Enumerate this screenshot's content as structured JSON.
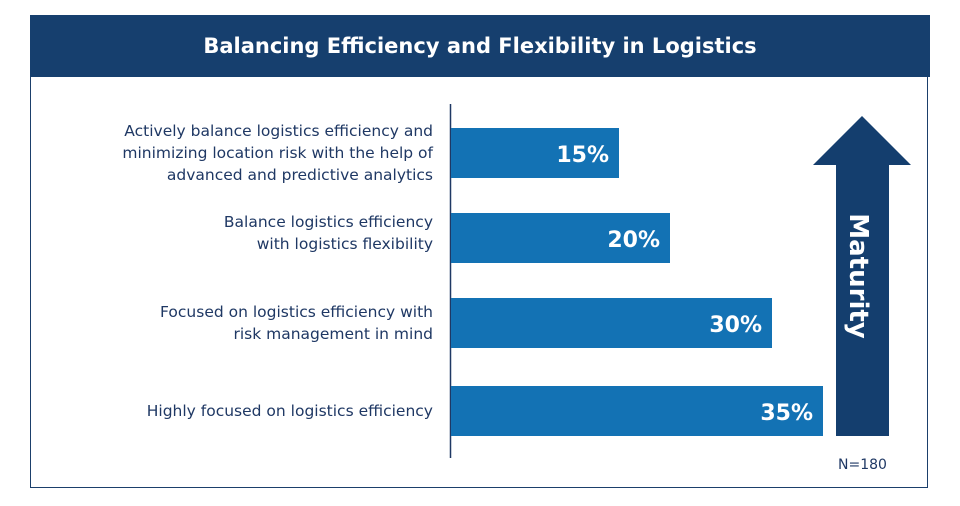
{
  "chart_data": {
    "type": "bar",
    "orientation": "horizontal",
    "title": "Balancing Efficiency and Flexibility in Logistics",
    "categories": [
      "Actively balance logistics efficiency and\nminimizing location risk with the help of\nadvanced and predictive analytics",
      "Balance logistics efficiency\nwith logistics flexibility",
      "Focused on logistics efficiency with\nrisk management in mind",
      "Highly focused on logistics efficiency"
    ],
    "values": [
      15,
      20,
      30,
      35
    ],
    "data_labels": [
      "15%",
      "20%",
      "30%",
      "35%"
    ],
    "unit": "%",
    "arrow_label": "Maturity",
    "note": "N=180",
    "grid": false,
    "colors": {
      "bar": "#1372b4",
      "arrow": "#143e6e",
      "header": "#163f6e",
      "text": "#1f3864"
    }
  }
}
